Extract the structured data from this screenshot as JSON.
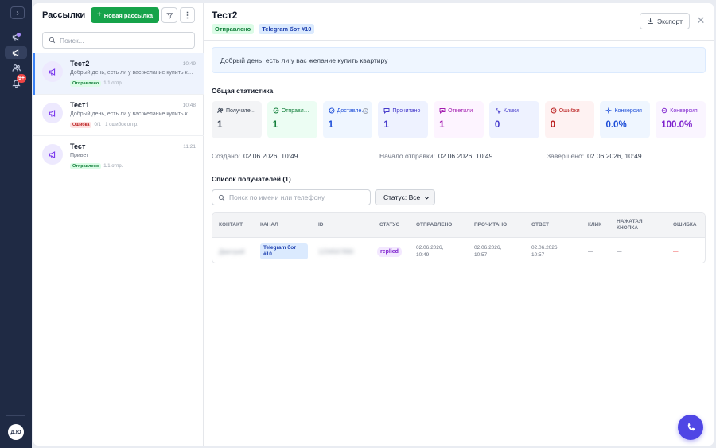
{
  "sidebar": {
    "toggle_icon": "chevron-right-icon",
    "notifications_badge": "9+",
    "avatar_initials": "Д.Ю"
  },
  "list": {
    "title": "Рассылки",
    "new_button": "Новая рассылка",
    "search_placeholder": "Поиск...",
    "items": [
      {
        "name": "Тест2",
        "time": "10:49",
        "preview": "Добрый день, есть ли у вас желание купить квартиру",
        "status": "Отправлено",
        "status_kind": "success",
        "counts": "1/1 отпр."
      },
      {
        "name": "Тест1",
        "time": "10:48",
        "preview": "Добрый день, есть ли у вас желание купить квартиру",
        "status": "Ошибка",
        "status_kind": "error",
        "counts": "0/1 · 1 ошибок отпр."
      },
      {
        "name": "Тест",
        "time": "11:21",
        "preview": "Привет",
        "status": "Отправлено",
        "status_kind": "success",
        "counts": "1/1 отпр."
      }
    ]
  },
  "detail": {
    "title": "Тест2",
    "status_tag": "Отправлено",
    "channel_tag": "Telegram бот #10",
    "export_button": "Экспорт",
    "message": "Добрый день, есть ли у вас желание купить квартиру",
    "stats_title": "Общая статистика",
    "stats": [
      {
        "label": "Получатели",
        "value": "1",
        "bg": "#f3f4f6",
        "fg": "#374151",
        "icon": "users-icon"
      },
      {
        "label": "Отправлено",
        "value": "1",
        "bg": "#ecfdf3",
        "fg": "#15803d",
        "icon": "check-circle-icon"
      },
      {
        "label": "Доставлено",
        "value": "1",
        "bg": "#eff6ff",
        "fg": "#1d4ed8",
        "icon": "check-circle-icon"
      },
      {
        "label": "Прочитано",
        "value": "1",
        "bg": "#eef2ff",
        "fg": "#4338ca",
        "icon": "message-icon"
      },
      {
        "label": "Ответили",
        "value": "1",
        "bg": "#fdf4ff",
        "fg": "#a21caf",
        "icon": "reply-icon"
      },
      {
        "label": "Клики",
        "value": "0",
        "bg": "#eef2ff",
        "fg": "#4338ca",
        "icon": "click-icon"
      },
      {
        "label": "Ошибки",
        "value": "0",
        "bg": "#fef2f2",
        "fg": "#b91c1c",
        "icon": "alert-icon"
      },
      {
        "label": "Конверсия",
        "value": "0.0%",
        "bg": "#eff6ff",
        "fg": "#1d4ed8",
        "icon": "sparkle-icon"
      },
      {
        "label": "Конверсия",
        "value": "100.0%",
        "bg": "#faf5ff",
        "fg": "#7e22ce",
        "icon": "chat-icon"
      }
    ],
    "created_label": "Создано:",
    "created_value": "02.06.2026, 10:49",
    "start_label": "Начало отправки:",
    "start_value": "02.06.2026, 10:49",
    "done_label": "Завершено:",
    "done_value": "02.06.2026, 10:49",
    "recipients_title": "Список получателей (1)",
    "recipients_search_placeholder": "Поиск по имени или телефону",
    "status_filter": "Статус: Все",
    "table": {
      "headers": [
        "КОНТАКТ",
        "КАНАЛ",
        "ID",
        "СТАТУС",
        "ОТПРАВЛЕНО",
        "ПРОЧИТАНО",
        "ОТВЕТ",
        "КЛИК",
        "НАЖАТАЯ КНОПКА",
        "ОШИБКА"
      ],
      "rows": [
        {
          "contact": "Дмитрий",
          "channel": "Telegram бот #10",
          "id": "1234567890",
          "status": "replied",
          "sent": "02.06.2026, 10:49",
          "read": "02.06.2026, 10:57",
          "reply": "02.06.2026, 10:57",
          "click": "—",
          "button": "—",
          "error": "—"
        }
      ]
    }
  },
  "colors": {
    "sidebar_bg": "#1f2a44",
    "accent_green": "#16a34a",
    "fab": "#4f46e5"
  }
}
